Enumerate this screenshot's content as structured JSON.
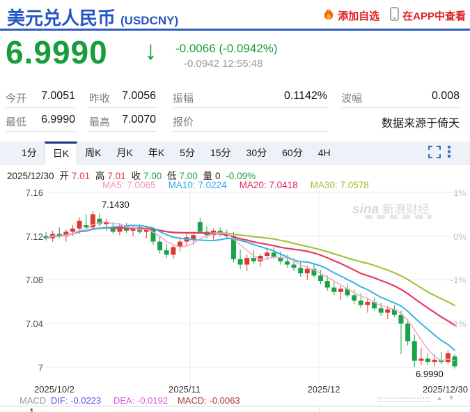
{
  "header": {
    "title": "美元兑人民币",
    "symbol": "(USDCNY)",
    "add_watchlist": "添加自选",
    "view_in_app": "在APP中查看"
  },
  "quote": {
    "price": "6.9990",
    "arrow": "↓",
    "change": "-0.0066 (-0.0942%)",
    "change_detail": "-0.0942 12:55:48"
  },
  "stats": {
    "rows": [
      {
        "cells": [
          {
            "label": "今开",
            "value": "7.0051"
          },
          {
            "label": "昨收",
            "value": "7.0056"
          },
          {
            "label": "振幅",
            "value": "0.1142%"
          },
          {
            "label": "波幅",
            "value": "0.008"
          }
        ]
      },
      {
        "cells": [
          {
            "label": "最低",
            "value": "6.9990"
          },
          {
            "label": "最高",
            "value": "7.0070"
          },
          {
            "label": "报价",
            "value": ""
          },
          {
            "label": "",
            "value": "数据来源于倚天"
          }
        ]
      }
    ]
  },
  "tabs": {
    "items": [
      "1分",
      "日K",
      "周K",
      "月K",
      "年K",
      "5分",
      "15分",
      "30分",
      "60分",
      "4H"
    ],
    "active": "日K"
  },
  "kinfo": {
    "date": "2025/12/30",
    "o_label": "开",
    "o": "7.01",
    "h_label": "高",
    "h": "7.01",
    "c_label": "收",
    "c": "7.00",
    "l_label": "低",
    "l": "7.00",
    "v_label": "量",
    "v": "0",
    "pct": "-0.09%"
  },
  "ma_legend": {
    "ma5": "MA5: 7.0065",
    "ma10": "MA10: 7.0224",
    "ma20": "MA20: 7.0418",
    "ma30": "MA30: 7.0578"
  },
  "watermark": {
    "brand": "sina",
    "name": "新浪财经"
  },
  "annotations": {
    "high": "7.1430",
    "low": "6.9990"
  },
  "macd_row": {
    "label": "MACD",
    "dif": "DIF: -0.0223",
    "dea": "DEA: -0.0192",
    "macd": "MACD: -0.0063",
    "partial_tick": "1"
  },
  "icons": {
    "slider_up": "▲",
    "slider_down": "▼"
  },
  "chart_data": {
    "type": "candlestick",
    "title": "USDCNY 日K",
    "x_labels": [
      "2025/10/2",
      "2025/11",
      "2025/12",
      "2025/12/30"
    ],
    "y_ticks_left": [
      7.16,
      7.12,
      7.08,
      7.04,
      7.0
    ],
    "y_ticks_right_pct": [
      "1%",
      "0%",
      "-1%",
      "-1%"
    ],
    "ylim": [
      6.979,
      7.176
    ],
    "grid": true,
    "high_annotation": 7.143,
    "low_annotation": 6.999,
    "ma_legend": {
      "MA5": 7.0065,
      "MA10": 7.0224,
      "MA20": 7.0418,
      "MA30": 7.0578
    },
    "macd": {
      "DIF": -0.0223,
      "DEA": -0.0192,
      "MACD": -0.0063
    },
    "last_day": {
      "date": "2025/12/30",
      "open": 7.01,
      "high": 7.01,
      "close": 7.0,
      "low": 7.0,
      "volume": 0,
      "pct": "-0.09%"
    },
    "candles": [
      [
        7.12,
        7.124,
        7.116,
        7.118
      ],
      [
        7.118,
        7.125,
        7.115,
        7.122
      ],
      [
        7.122,
        7.128,
        7.118,
        7.12
      ],
      [
        7.12,
        7.126,
        7.115,
        7.124
      ],
      [
        7.124,
        7.13,
        7.12,
        7.127
      ],
      [
        7.127,
        7.137,
        7.122,
        7.134
      ],
      [
        7.13,
        7.14,
        7.126,
        7.128
      ],
      [
        7.128,
        7.143,
        7.126,
        7.14
      ],
      [
        7.136,
        7.141,
        7.129,
        7.131
      ],
      [
        7.131,
        7.136,
        7.125,
        7.133
      ],
      [
        7.128,
        7.133,
        7.122,
        7.124
      ],
      [
        7.124,
        7.131,
        7.121,
        7.129
      ],
      [
        7.129,
        7.132,
        7.123,
        7.125
      ],
      [
        7.125,
        7.13,
        7.12,
        7.128
      ],
      [
        7.128,
        7.131,
        7.122,
        7.124
      ],
      [
        7.124,
        7.129,
        7.118,
        7.126
      ],
      [
        7.126,
        7.128,
        7.112,
        7.115
      ],
      [
        7.115,
        7.12,
        7.104,
        7.107
      ],
      [
        7.107,
        7.113,
        7.1,
        7.103
      ],
      [
        7.103,
        7.112,
        7.099,
        7.11
      ],
      [
        7.11,
        7.118,
        7.106,
        7.115
      ],
      [
        7.115,
        7.122,
        7.111,
        7.119
      ],
      [
        7.117,
        7.124,
        7.112,
        7.121
      ],
      [
        7.133,
        7.137,
        7.122,
        7.124
      ],
      [
        7.124,
        7.129,
        7.118,
        7.121
      ],
      [
        7.121,
        7.127,
        7.117,
        7.125
      ],
      [
        7.125,
        7.128,
        7.12,
        7.122
      ],
      [
        7.122,
        7.126,
        7.117,
        7.12
      ],
      [
        7.12,
        7.124,
        7.096,
        7.099
      ],
      [
        7.099,
        7.108,
        7.09,
        7.094
      ],
      [
        7.094,
        7.103,
        7.088,
        7.1
      ],
      [
        7.1,
        7.107,
        7.095,
        7.097
      ],
      [
        7.097,
        7.104,
        7.092,
        7.102
      ],
      [
        7.102,
        7.109,
        7.098,
        7.105
      ],
      [
        7.105,
        7.11,
        7.099,
        7.101
      ],
      [
        7.101,
        7.106,
        7.094,
        7.097
      ],
      [
        7.097,
        7.103,
        7.091,
        7.094
      ],
      [
        7.094,
        7.1,
        7.088,
        7.091
      ],
      [
        7.091,
        7.097,
        7.083,
        7.086
      ],
      [
        7.086,
        7.093,
        7.08,
        7.09
      ],
      [
        7.09,
        7.094,
        7.082,
        7.084
      ],
      [
        7.084,
        7.089,
        7.076,
        7.079
      ],
      [
        7.079,
        7.084,
        7.07,
        7.073
      ],
      [
        7.073,
        7.079,
        7.066,
        7.069
      ],
      [
        7.069,
        7.075,
        7.062,
        7.072
      ],
      [
        7.072,
        7.076,
        7.064,
        7.066
      ],
      [
        7.066,
        7.071,
        7.058,
        7.061
      ],
      [
        7.061,
        7.068,
        7.054,
        7.057
      ],
      [
        7.057,
        7.063,
        7.05,
        7.06
      ],
      [
        7.06,
        7.064,
        7.052,
        7.054
      ],
      [
        7.054,
        7.059,
        7.047,
        7.05
      ],
      [
        7.05,
        7.056,
        7.044,
        7.053
      ],
      [
        7.053,
        7.057,
        7.046,
        7.048
      ],
      [
        7.048,
        7.052,
        7.012,
        7.04
      ],
      [
        7.04,
        7.044,
        7.02,
        7.024
      ],
      [
        7.024,
        7.03,
        7.0,
        7.006
      ],
      [
        7.006,
        7.018,
        7.002,
        7.008
      ],
      [
        7.008,
        7.013,
        7.002,
        7.005
      ],
      [
        7.005,
        7.012,
        7.001,
        7.007
      ],
      [
        7.007,
        7.014,
        7.003,
        7.005
      ],
      [
        7.005,
        7.016,
        7.003,
        7.013
      ],
      [
        7.01,
        7.012,
        6.999,
        7.001
      ]
    ],
    "ma_windows": {
      "ma5": 5,
      "ma10": 10,
      "ma20": 20,
      "ma30": 30
    },
    "colors": {
      "up": "#dc3a33",
      "down": "#18a348",
      "ma5": "#f7a8c9",
      "ma10": "#35b2e5",
      "ma20": "#e8386b",
      "ma30": "#a6c33c",
      "grid": "#ebebeb",
      "accent_blue": "#2e5cc2",
      "price_green": "#169e3a",
      "link_red": "#e01f1f"
    }
  }
}
